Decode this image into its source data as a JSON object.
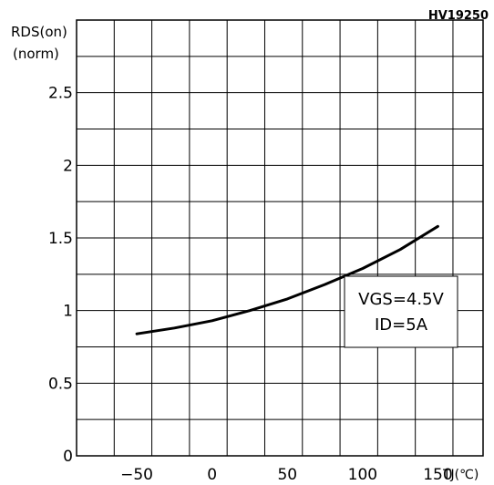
{
  "chart_data": {
    "type": "line",
    "figure_code": "HV19250",
    "ylabel_main": "RDS(on)",
    "ylabel_unit": "(norm)",
    "xlabel": "TJ(℃)",
    "xlim": [
      -90,
      180
    ],
    "ylim": [
      0,
      3
    ],
    "xticks": [
      -50,
      0,
      50,
      100,
      150
    ],
    "xtick_labels": [
      "−50",
      "0",
      "50",
      "100",
      "150"
    ],
    "yticks": [
      0,
      0.5,
      1,
      1.5,
      2,
      2.5
    ],
    "ytick_labels": [
      "0",
      "0.5",
      "1",
      "1.5",
      "2",
      "2.5"
    ],
    "grid": true,
    "grid_x_step": 25,
    "grid_y_step": 0.25,
    "annotation": {
      "line1": "VGS=4.5V",
      "line2": "ID=5A"
    },
    "series": [
      {
        "x": [
          -50,
          -25,
          0,
          25,
          50,
          75,
          100,
          125,
          150
        ],
        "y": [
          0.84,
          0.88,
          0.93,
          1.0,
          1.08,
          1.18,
          1.29,
          1.42,
          1.58
        ]
      }
    ]
  }
}
